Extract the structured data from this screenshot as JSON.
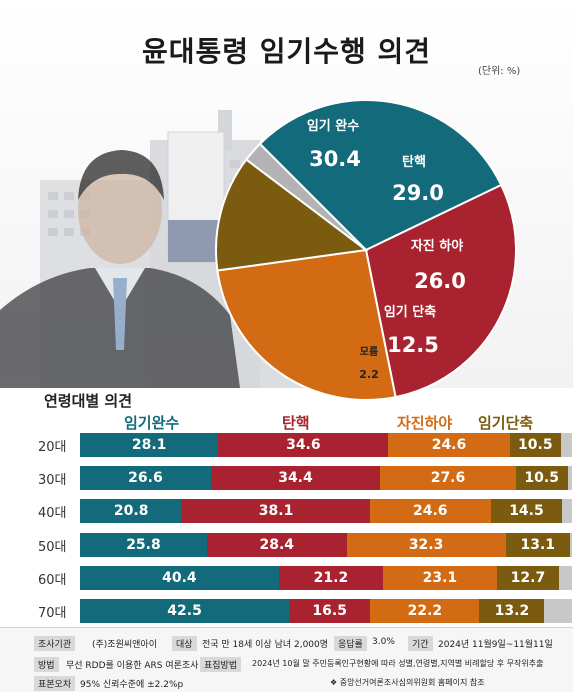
{
  "header": {
    "title": "윤대통령 임기수행 의견",
    "unit": "(단위: %)"
  },
  "colors": {
    "complete": "#136a7a",
    "impeach": "#a8232f",
    "resign": "#d36b14",
    "shorten": "#7a5b10",
    "dontknow": "#b3b3b3"
  },
  "chart_data": [
    {
      "type": "pie",
      "title": "윤대통령 임기수행 의견",
      "unit": "(단위: %)",
      "slices": [
        {
          "label": "임기 완수",
          "value": 30.4,
          "value_text": "30.4",
          "color": "#136a7a"
        },
        {
          "label": "탄핵",
          "value": 29.0,
          "value_text": "29.0",
          "color": "#a8232f"
        },
        {
          "label": "자진 하야",
          "value": 26.0,
          "value_text": "26.0",
          "color": "#d36b14"
        },
        {
          "label": "임기 단축",
          "value": 12.5,
          "value_text": "12.5",
          "color": "#7a5b10"
        },
        {
          "label": "모름",
          "value": 2.2,
          "value_text": "2.2",
          "color": "#b3b3b3"
        }
      ]
    },
    {
      "type": "bar",
      "title": "연령대별 의견",
      "stacked": true,
      "orientation": "horizontal",
      "categories": [
        "20대",
        "30대",
        "40대",
        "50대",
        "60대",
        "70대"
      ],
      "series": [
        {
          "name": "임기완수",
          "color": "#136a7a",
          "values": [
            28.1,
            26.6,
            20.8,
            25.8,
            40.4,
            42.5
          ],
          "labels": [
            "28.1",
            "26.6",
            "20.8",
            "25.8",
            "40.4",
            "42.5"
          ]
        },
        {
          "name": "탄핵",
          "color": "#a8232f",
          "values": [
            34.6,
            34.4,
            38.1,
            28.4,
            21.2,
            16.5
          ],
          "labels": [
            "34.6",
            "34.4",
            "38.1",
            "28.4",
            "21.2",
            "16.5"
          ]
        },
        {
          "name": "자진하야",
          "color": "#d36b14",
          "values": [
            24.6,
            27.6,
            24.6,
            32.3,
            23.1,
            22.2
          ],
          "labels": [
            "24.6",
            "27.6",
            "24.6",
            "32.3",
            "23.1",
            "22.2"
          ]
        },
        {
          "name": "임기단축",
          "color": "#7a5b10",
          "values": [
            10.5,
            10.5,
            14.5,
            13.1,
            12.7,
            13.2
          ],
          "labels": [
            "10.5",
            "10.5",
            "14.5",
            "13.1",
            "12.7",
            "13.2"
          ]
        }
      ],
      "xlim": [
        0,
        100
      ]
    }
  ],
  "footer": {
    "org_label": "조사기관",
    "org_value": "(주)조원씨앤아이",
    "target_label": "대상",
    "target_value": "전국 만 18세 이상 남녀 2,000명",
    "rate_label": "응답률",
    "rate_value": "3.0%",
    "period_label": "기간",
    "period_value": "2024년 11월9일~11월11일",
    "method_label": "방법",
    "method_value": "무선 RDD를 이용한 ARS 여론조사",
    "sampling_label": "표집방법",
    "sampling_value": "2024년 10월 말 주민등록인구현황에 따라 성별,연령별,지역별 비례할당 후 무작위추출",
    "error_label": "표본오차",
    "error_value": "95% 신뢰수준에 ±2.2%p",
    "note": "❖ 중앙선거여론조사심의위원회 홈페이지 참조"
  }
}
